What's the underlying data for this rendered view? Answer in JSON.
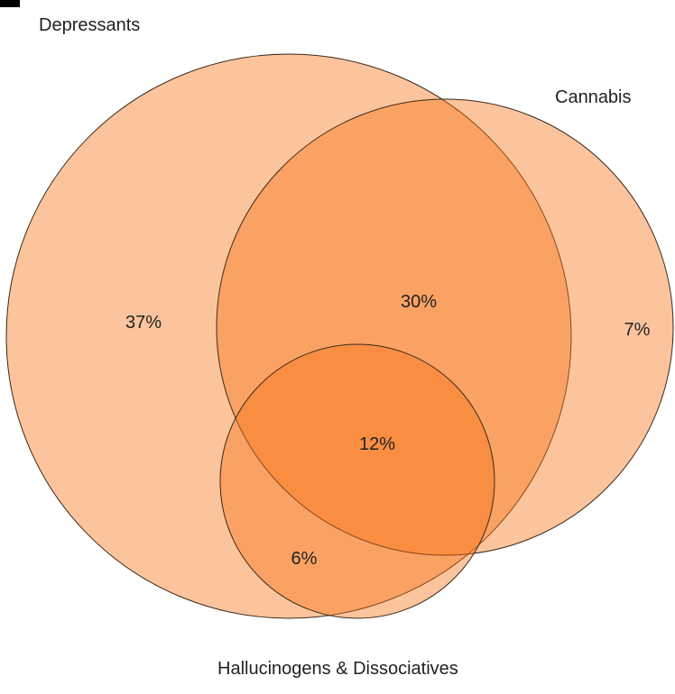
{
  "diagram": {
    "type": "venn",
    "fill_color": "#f97316",
    "stroke_color": "#3a2a1a",
    "sets": [
      {
        "id": "depressants",
        "label": "Depressants"
      },
      {
        "id": "cannabis",
        "label": "Cannabis"
      },
      {
        "id": "hallucinogens",
        "label": "Hallucinogens & Dissociatives"
      }
    ],
    "regions": [
      {
        "sets": [
          "depressants"
        ],
        "label": "37%"
      },
      {
        "sets": [
          "depressants",
          "cannabis"
        ],
        "label": "30%"
      },
      {
        "sets": [
          "cannabis"
        ],
        "label": "7%"
      },
      {
        "sets": [
          "depressants",
          "cannabis",
          "hallucinogens"
        ],
        "label": "12%"
      },
      {
        "sets": [
          "depressants",
          "hallucinogens"
        ],
        "label": "6%"
      }
    ]
  }
}
